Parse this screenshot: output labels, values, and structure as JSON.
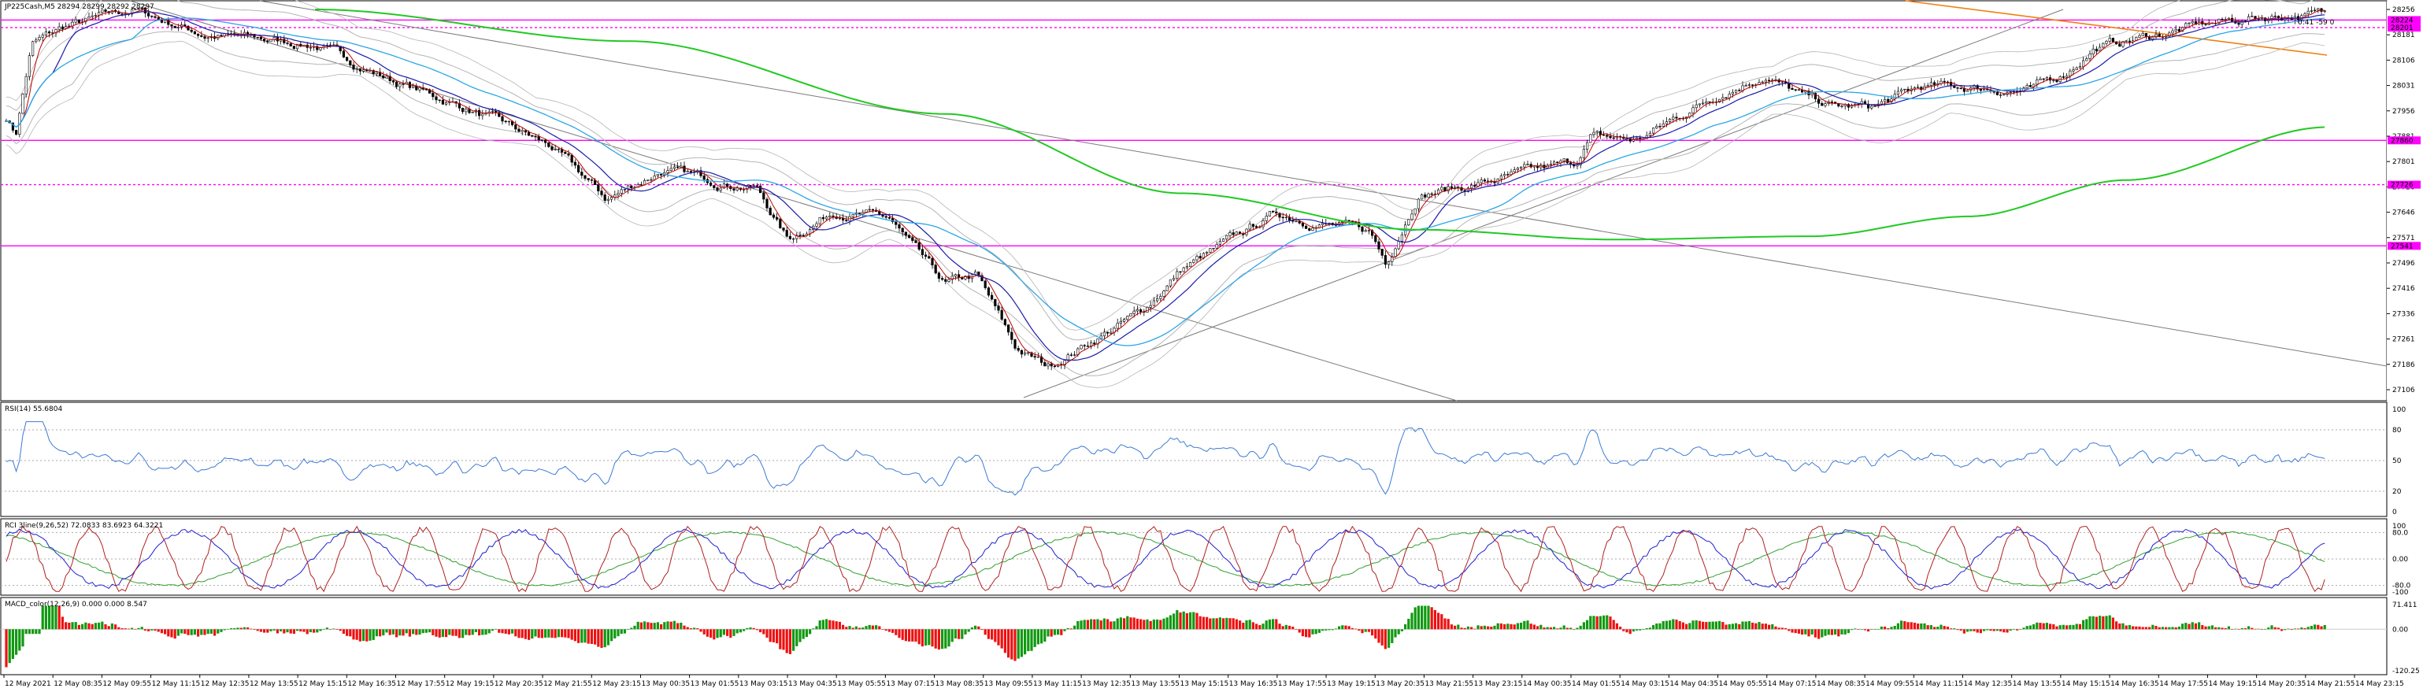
{
  "colors": {
    "background": "#ffffff",
    "bull": "#000000",
    "ma_fast": "#c00000",
    "ma_blue": "#1a1aaa",
    "ma_cyan": "#2aa6e6",
    "ma_green": "#22c922",
    "bands": "#b5b5b5",
    "trend_grey": "#7a7a7a",
    "trend_orange": "#f08010",
    "hline_magenta": "#ff00ff",
    "rsi": "#3d7bd4",
    "rci_red": "#b02020",
    "rci_blue": "#2020d0",
    "rci_green": "#30a030",
    "macd_up": "#119911",
    "macd_down": "#ee1111"
  },
  "main": {
    "title": "JP225Cash,M5  28294 28299 28292 28297",
    "corner_text": "0:41 -59 0",
    "price_axis": [
      "28256",
      "28181",
      "28106",
      "28031",
      "27956",
      "27881",
      "27801",
      "27726",
      "27646",
      "27571",
      "27496",
      "27416",
      "27336",
      "27261",
      "27186",
      "27106"
    ],
    "hline_labels": [
      "28224",
      "28201",
      "27860",
      "27726",
      "27541"
    ]
  },
  "rsi": {
    "title": "RSI(14) 55.6804",
    "axis": [
      "100",
      "80",
      "50",
      "20",
      "0"
    ]
  },
  "rci": {
    "title": "RCI 3line(9,26,52) 72.0833 83.6923 64.3221",
    "axis": [
      "100",
      "80.0",
      "0.00",
      "-80.0",
      "-100"
    ]
  },
  "macd": {
    "title": "MACD_color(12,26,9) 0.000 0.000 8.547",
    "axis": [
      "71.411",
      "0.00",
      "-120.25"
    ]
  },
  "time_axis": [
    "12 May 2021",
    "12 May 08:35",
    "12 May 09:55",
    "12 May 11:15",
    "12 May 12:35",
    "12 May 13:55",
    "12 May 15:15",
    "12 May 16:35",
    "12 May 17:55",
    "12 May 19:15",
    "12 May 20:35",
    "12 May 21:55",
    "12 May 23:15",
    "13 May 00:35",
    "13 May 01:55",
    "13 May 03:15",
    "13 May 04:35",
    "13 May 05:55",
    "13 May 07:15",
    "13 May 08:35",
    "13 May 09:55",
    "13 May 11:15",
    "13 May 12:35",
    "13 May 13:55",
    "13 May 15:15",
    "13 May 16:35",
    "13 May 17:55",
    "13 May 19:15",
    "13 May 20:35",
    "13 May 21:55",
    "13 May 23:15",
    "14 May 00:35",
    "14 May 01:55",
    "14 May 03:15",
    "14 May 04:35",
    "14 May 05:55",
    "14 May 07:15",
    "14 May 08:35",
    "14 May 09:55",
    "14 May 11:15",
    "14 May 12:35",
    "14 May 13:55",
    "14 May 15:15",
    "14 May 16:35",
    "14 May 17:55",
    "14 May 19:15",
    "14 May 20:35",
    "14 May 21:55",
    "14 May 23:15"
  ]
}
